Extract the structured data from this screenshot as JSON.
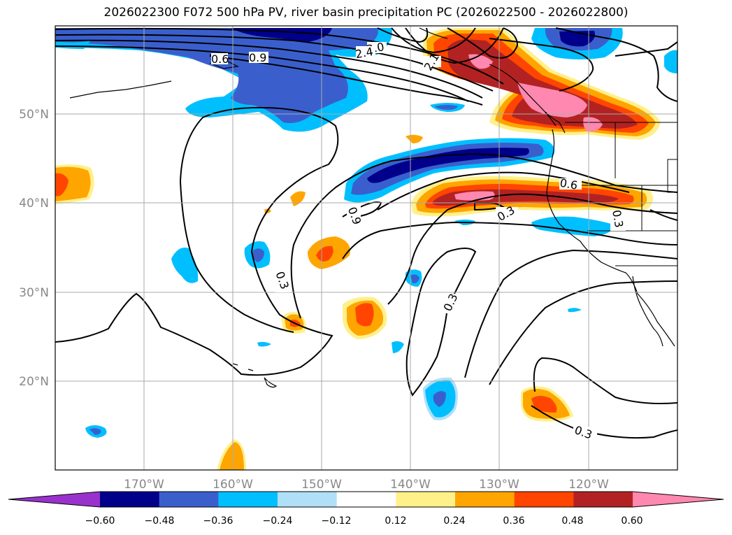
{
  "title": "2026022300 F072 500 hPa PV, river basin precipitation PC (2026022500 - 2026022800)",
  "map": {
    "lon_range": [
      -180,
      -110
    ],
    "lat_range": [
      10,
      60
    ],
    "lon_ticks": [
      -170,
      -160,
      -150,
      -140,
      -130,
      -120
    ],
    "lat_ticks": [
      20,
      30,
      40,
      50
    ],
    "lon_tick_labels": [
      "170°W",
      "160°W",
      "150°W",
      "140°W",
      "130°W",
      "120°W"
    ],
    "lat_tick_labels": [
      "20°N",
      "30°N",
      "40°N",
      "50°N"
    ]
  },
  "contours": {
    "variable": "500 hPa PV",
    "labels": [
      "0.3",
      "0.6",
      "0.9",
      "2.1",
      "2.4",
      "3.0"
    ]
  },
  "colorbar": {
    "colors": [
      "#9932cc",
      "#00008b",
      "#3a5fcd",
      "#00bfff",
      "#b0e0f8",
      "#ffffff",
      "#fff08a",
      "#ffa500",
      "#ff4500",
      "#b22222",
      "#ff88b0"
    ],
    "tick_labels": [
      "−0.60",
      "−0.48",
      "−0.36",
      "−0.24",
      "−0.12",
      "0.12",
      "0.24",
      "0.36",
      "0.48",
      "0.60"
    ]
  }
}
